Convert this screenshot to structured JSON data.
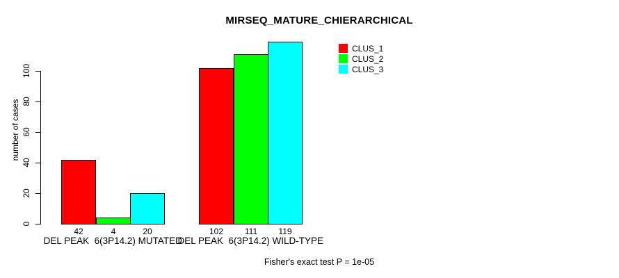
{
  "title": "MIRSEQ_MATURE_CHIERARCHICAL",
  "colors": {
    "background": "#ffffff",
    "text": "#000000",
    "axis": "#000000",
    "bar_border": "#000000",
    "clus_1": "#ff0000",
    "clus_2": "#00ff00",
    "clus_3": "#00ffff"
  },
  "chart_data": {
    "type": "bar",
    "title": "MIRSEQ_MATURE_CHIERARCHICAL",
    "xlabel": "",
    "ylabel": "number of cases",
    "categories": [
      "DEL PEAK  6(3P14.2) MUTATED",
      "DEL PEAK  6(3P14.2) WILD-TYPE"
    ],
    "series": [
      {
        "name": "CLUS_1",
        "color": "#ff0000",
        "values": [
          42,
          102
        ]
      },
      {
        "name": "CLUS_2",
        "color": "#00ff00",
        "values": [
          4,
          111
        ]
      },
      {
        "name": "CLUS_3",
        "color": "#00ffff",
        "values": [
          20,
          119
        ]
      }
    ],
    "bar_value_labels": [
      [
        "42",
        "4",
        "20"
      ],
      [
        "102",
        "111",
        "119"
      ]
    ],
    "yticks": [
      "0",
      "20",
      "40",
      "60",
      "80",
      "100"
    ],
    "ytick_values": [
      0,
      20,
      40,
      60,
      80,
      100
    ],
    "ylim": [
      0,
      121
    ],
    "grid": false,
    "legend_position": "top-right",
    "legend_entries": [
      "CLUS_1",
      "CLUS_2",
      "CLUS_3"
    ],
    "annotation": "Fisher's exact test P = 1e-05"
  }
}
